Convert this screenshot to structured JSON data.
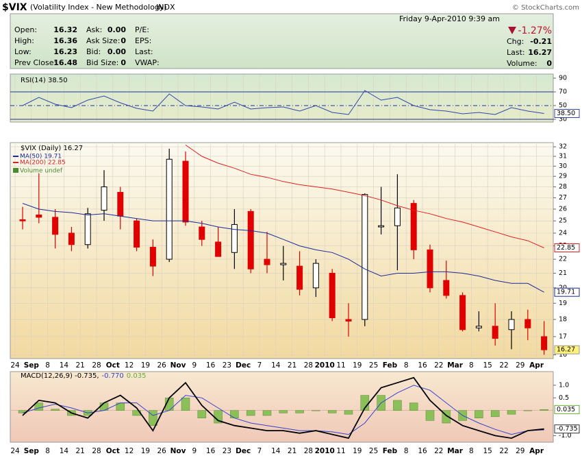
{
  "header": {
    "symbol": "$VIX",
    "name": "(Volatility Index - New Methodology)",
    "exchange": "INDX",
    "credit": "© StockCharts.com"
  },
  "quote": {
    "date": "Friday  9-Apr-2010  9:39 am",
    "change_pct": "-1.27%",
    "left": [
      {
        "label": "Open:",
        "value": "16.32"
      },
      {
        "label": "High:",
        "value": "16.36"
      },
      {
        "label": "Low:",
        "value": "16.23"
      },
      {
        "label": "Prev Close:",
        "value": "16.48"
      }
    ],
    "middle": [
      {
        "label": "Ask:",
        "value": "0.00"
      },
      {
        "label": "Ask Size:",
        "value": "0"
      },
      {
        "label": "Bid:",
        "value": "0.00"
      },
      {
        "label": "Bid Size:",
        "value": "0"
      }
    ],
    "fundamentals": [
      "P/E:",
      "EPS:",
      "Last:",
      "VWAP:"
    ],
    "right": [
      {
        "label": "Chg:",
        "value": "-0.21"
      },
      {
        "label": "Last:",
        "value": "16.27"
      },
      {
        "label": "Volume:",
        "value": "0"
      }
    ]
  },
  "chart_data": [
    {
      "type": "line",
      "title": "RSI(14) 38.50",
      "ylim": [
        26,
        94
      ],
      "yticks": [
        30,
        50,
        70,
        90
      ],
      "reference_lines": [
        30,
        50,
        70
      ],
      "grid": true,
      "series": [
        {
          "name": "RSI(14)",
          "color": "#3344aa",
          "last_label": "38.50",
          "values": [
            50,
            62,
            52,
            47,
            58,
            64,
            54,
            46,
            42,
            67,
            50,
            48,
            45,
            55,
            45,
            47,
            48,
            42,
            50,
            40,
            37,
            72,
            58,
            62,
            50,
            44,
            42,
            38,
            40,
            37,
            47,
            42,
            38.5
          ]
        }
      ]
    },
    {
      "type": "candlestick",
      "title": "$VIX (Daily) 16.27",
      "log_scale": true,
      "grid": true,
      "volume_label": "Volume undef",
      "categories": [
        "24",
        "Sep",
        "8",
        "14",
        "21",
        "28",
        "Oct",
        "12",
        "19",
        "26",
        "Nov",
        "9",
        "16",
        "23",
        "Dec",
        "7",
        "14",
        "21",
        "28",
        "2010",
        "11",
        "19",
        "25",
        "Feb",
        "8",
        "16",
        "22",
        "Mar",
        "8",
        "15",
        "22",
        "29",
        "Apr"
      ],
      "ylim": [
        15.8,
        32.3
      ],
      "yticks": [
        16,
        17,
        18,
        19,
        20,
        21,
        22,
        23,
        24,
        25,
        26,
        27,
        28,
        29,
        30,
        31,
        32
      ],
      "up_color": "#000000",
      "down_color": "#e00000",
      "last_label": "16.27",
      "open": [
        25.1,
        25.5,
        25.3,
        24.0,
        23.1,
        25.9,
        27.5,
        25.0,
        22.9,
        22.0,
        30.5,
        24.5,
        23.3,
        22.5,
        25.8,
        22.0,
        21.6,
        21.5,
        20.0,
        21.0,
        18.0,
        18.0,
        24.5,
        24.6,
        26.5,
        22.7,
        20.5,
        19.5,
        17.5,
        17.6,
        17.4,
        18.0,
        17.0
      ],
      "high": [
        26.2,
        29.3,
        26.0,
        24.5,
        26.1,
        29.6,
        28.0,
        25.2,
        23.5,
        31.8,
        31.5,
        25.0,
        24.5,
        26.0,
        26.0,
        24.1,
        23.0,
        22.6,
        22.0,
        21.3,
        19.0,
        27.4,
        28.0,
        29.2,
        26.8,
        23.1,
        21.9,
        19.7,
        18.5,
        19.0,
        18.5,
        18.6,
        17.9
      ],
      "low": [
        24.3,
        24.8,
        22.8,
        22.6,
        22.8,
        25.0,
        24.3,
        22.6,
        20.8,
        21.8,
        24.6,
        23.0,
        22.2,
        21.3,
        21.0,
        21.0,
        20.5,
        19.5,
        19.4,
        17.9,
        17.0,
        17.6,
        23.9,
        21.2,
        22.0,
        19.7,
        19.3,
        17.3,
        17.3,
        16.5,
        16.3,
        16.8,
        16.0
      ],
      "close": [
        25.0,
        25.3,
        23.9,
        23.1,
        25.6,
        28.0,
        25.4,
        22.9,
        21.5,
        30.7,
        24.9,
        23.5,
        22.2,
        24.7,
        21.3,
        21.6,
        21.7,
        19.9,
        21.7,
        18.1,
        17.9,
        27.3,
        24.6,
        26.1,
        22.7,
        20.0,
        19.5,
        17.4,
        17.6,
        16.9,
        18.0,
        17.5,
        16.27
      ],
      "series": [
        {
          "name": "MA(50) 19.71",
          "color": "#1a2a9a",
          "last_label": "19.71",
          "values": [
            26.5,
            26,
            25.8,
            25.7,
            25.5,
            25.6,
            25.4,
            25.2,
            25,
            25,
            25,
            24.8,
            24.5,
            24.3,
            24.2,
            24.0,
            23.5,
            23.0,
            22.7,
            22.5,
            22.0,
            21.3,
            20.8,
            21.0,
            21.0,
            21.1,
            21.1,
            21.0,
            20.8,
            20.5,
            20.3,
            20.3,
            19.71
          ]
        },
        {
          "name": "MA(200) 22.85",
          "color": "#e02020",
          "last_label": "22.85",
          "values": [
            null,
            null,
            null,
            null,
            null,
            null,
            null,
            null,
            null,
            null,
            32.2,
            31.0,
            30.3,
            29.8,
            29.2,
            28.9,
            28.5,
            28.2,
            28.0,
            27.8,
            27.5,
            27.2,
            26.8,
            26.3,
            25.9,
            25.6,
            25.2,
            24.9,
            24.5,
            24.1,
            23.7,
            23.4,
            22.85
          ]
        }
      ]
    },
    {
      "type": "macd",
      "categories": [
        "24",
        "Sep",
        "8",
        "14",
        "21",
        "28",
        "Oct",
        "12",
        "19",
        "26",
        "Nov",
        "9",
        "16",
        "23",
        "Dec",
        "7",
        "14",
        "21",
        "28",
        "2010",
        "11",
        "19",
        "25",
        "Feb",
        "8",
        "16",
        "22",
        "Mar",
        "8",
        "15",
        "22",
        "29",
        "Apr"
      ],
      "ylim": [
        -1.26,
        1.54
      ],
      "yticks": [
        {
          "value": 1,
          "label": "1.0"
        },
        {
          "value": 0.5,
          "label": "0.5"
        },
        {
          "value": -1,
          "label": "-1.0"
        }
      ],
      "series": [
        {
          "name": "MACD(12,26,9) -0.735,",
          "color": "#000000",
          "last_label": "-0.735",
          "values": [
            -0.2,
            0.4,
            0.3,
            -0.1,
            -0.3,
            0.3,
            0.6,
            0.1,
            -0.8,
            0.5,
            1.1,
            0.2,
            -0.4,
            -0.6,
            -0.7,
            -0.8,
            -0.8,
            -0.9,
            -0.8,
            -0.95,
            -1.1,
            0.1,
            0.9,
            1.1,
            1.3,
            0.4,
            -0.2,
            -0.6,
            -0.8,
            -1.0,
            -1.1,
            -0.8,
            -0.735
          ]
        },
        {
          "name": "-0.770",
          "color": "#3344cc",
          "values": [
            -0.1,
            0.1,
            0.25,
            0.1,
            -0.1,
            0,
            0.3,
            0.3,
            -0.2,
            0,
            0.6,
            0.5,
            0.1,
            -0.3,
            -0.5,
            -0.6,
            -0.7,
            -0.8,
            -0.8,
            -0.85,
            -0.95,
            -0.5,
            0.3,
            0.7,
            1.0,
            0.8,
            0.3,
            -0.2,
            -0.5,
            -0.75,
            -0.95,
            -0.8,
            -0.77
          ]
        },
        {
          "name": "0.035",
          "color": "#66aa33",
          "last_label": "0.035",
          "values": [
            -0.1,
            0.3,
            0.05,
            -0.2,
            -0.2,
            0.3,
            0.3,
            -0.2,
            -0.6,
            0.5,
            0.5,
            -0.3,
            -0.5,
            -0.3,
            -0.2,
            -0.2,
            -0.1,
            -0.1,
            0,
            -0.1,
            -0.15,
            0.6,
            0.6,
            0.4,
            0.3,
            -0.4,
            -0.5,
            -0.4,
            -0.3,
            -0.25,
            -0.15,
            0,
            0.035
          ]
        }
      ]
    }
  ]
}
